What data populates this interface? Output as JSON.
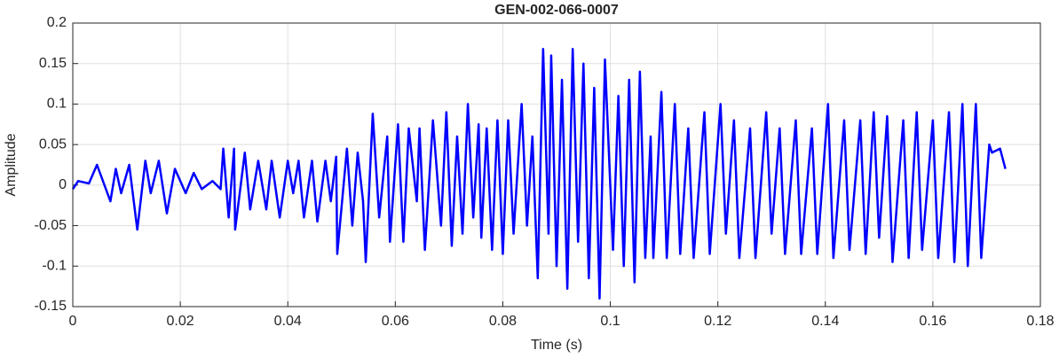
{
  "chart_data": {
    "type": "line",
    "title": "GEN-002-066-0007",
    "xlabel": "Time (s)",
    "ylabel": "Amplitude",
    "color": "#0000ff",
    "grid": true,
    "xlim": [
      0,
      0.18
    ],
    "xticks": [
      0,
      0.02,
      0.04,
      0.06,
      0.08,
      0.1,
      0.12,
      0.14,
      0.16,
      0.18
    ],
    "ylim": [
      -0.15,
      0.2
    ],
    "yticks": [
      -0.15,
      -0.1,
      -0.05,
      0,
      0.05,
      0.1,
      0.15,
      0.2
    ],
    "x": [
      0,
      0.001,
      0.003,
      0.0045,
      0.007,
      0.008,
      0.009,
      0.0105,
      0.012,
      0.0135,
      0.0145,
      0.016,
      0.0175,
      0.019,
      0.021,
      0.0225,
      0.024,
      0.026,
      0.0275,
      0.028,
      0.029,
      0.03,
      0.0302,
      0.032,
      0.033,
      0.0345,
      0.036,
      0.037,
      0.0385,
      0.04,
      0.041,
      0.042,
      0.043,
      0.0445,
      0.0455,
      0.047,
      0.048,
      0.049,
      0.0492,
      0.051,
      0.052,
      0.053,
      0.054,
      0.0545,
      0.0558,
      0.057,
      0.0585,
      0.059,
      0.0605,
      0.0615,
      0.0625,
      0.064,
      0.0645,
      0.0655,
      0.067,
      0.0685,
      0.0695,
      0.0705,
      0.0715,
      0.0725,
      0.0735,
      0.0745,
      0.0755,
      0.076,
      0.077,
      0.078,
      0.079,
      0.08,
      0.081,
      0.082,
      0.0835,
      0.0845,
      0.0855,
      0.0865,
      0.0875,
      0.0885,
      0.089,
      0.09,
      0.091,
      0.092,
      0.093,
      0.094,
      0.095,
      0.096,
      0.097,
      0.098,
      0.099,
      0.1005,
      0.1015,
      0.1025,
      0.1035,
      0.1045,
      0.1055,
      0.1065,
      0.1075,
      0.108,
      0.1095,
      0.1105,
      0.112,
      0.113,
      0.1145,
      0.1155,
      0.1175,
      0.1185,
      0.1205,
      0.1215,
      0.123,
      0.124,
      0.126,
      0.127,
      0.129,
      0.13,
      0.1315,
      0.1325,
      0.1345,
      0.1355,
      0.1375,
      0.1385,
      0.1405,
      0.1415,
      0.1435,
      0.1445,
      0.1465,
      0.1475,
      0.149,
      0.15,
      0.1515,
      0.1525,
      0.1545,
      0.1555,
      0.157,
      0.158,
      0.16,
      0.161,
      0.163,
      0.164,
      0.1655,
      0.1665,
      0.168,
      0.169,
      0.1705,
      0.171,
      0.1725,
      0.1735
    ],
    "values": [
      -0.005,
      0.005,
      0.002,
      0.025,
      -0.02,
      0.02,
      -0.01,
      0.025,
      -0.055,
      0.03,
      -0.01,
      0.03,
      -0.035,
      0.02,
      -0.01,
      0.015,
      -0.005,
      0.005,
      -0.005,
      0.045,
      -0.04,
      0.045,
      -0.055,
      0.04,
      -0.03,
      0.03,
      -0.03,
      0.03,
      -0.04,
      0.03,
      -0.01,
      0.03,
      -0.04,
      0.03,
      -0.045,
      0.03,
      -0.02,
      0.035,
      -0.085,
      0.045,
      -0.05,
      0.04,
      -0.02,
      -0.095,
      0.088,
      -0.04,
      0.06,
      -0.07,
      0.075,
      -0.07,
      0.07,
      -0.02,
      0.07,
      -0.08,
      0.08,
      -0.05,
      0.09,
      -0.075,
      0.06,
      -0.06,
      0.1,
      -0.04,
      0.075,
      -0.065,
      0.07,
      -0.08,
      0.08,
      -0.085,
      0.08,
      -0.06,
      0.1,
      -0.05,
      0.06,
      -0.115,
      0.168,
      -0.06,
      0.16,
      -0.1,
      0.13,
      -0.128,
      0.168,
      -0.07,
      0.15,
      -0.115,
      0.12,
      -0.14,
      0.155,
      -0.08,
      0.11,
      -0.1,
      0.13,
      -0.12,
      0.14,
      -0.09,
      0.06,
      -0.09,
      0.115,
      -0.09,
      0.1,
      -0.085,
      0.07,
      -0.09,
      0.09,
      -0.085,
      0.1,
      -0.06,
      0.08,
      -0.09,
      0.07,
      -0.09,
      0.09,
      -0.06,
      0.07,
      -0.085,
      0.08,
      -0.085,
      0.07,
      -0.085,
      0.1,
      -0.09,
      0.08,
      -0.08,
      0.08,
      -0.085,
      0.09,
      -0.065,
      0.085,
      -0.095,
      0.08,
      -0.09,
      0.09,
      -0.08,
      0.08,
      -0.09,
      0.09,
      -0.095,
      0.1,
      -0.1,
      0.1,
      -0.09,
      0.05,
      0.04,
      0.045,
      0.02
    ]
  }
}
